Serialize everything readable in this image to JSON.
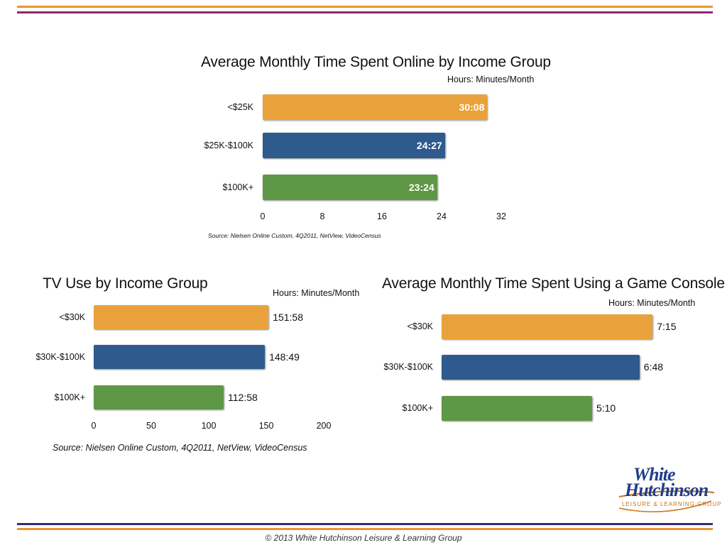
{
  "chart_data": [
    {
      "type": "bar",
      "orientation": "horizontal",
      "title": "Average Monthly Time Spent Online by Income Group",
      "units_label": "Hours: Minutes/Month",
      "categories": [
        "<$25K",
        "$25K-$100K",
        "$100K+"
      ],
      "values": [
        30.13,
        24.45,
        23.4
      ],
      "value_labels": [
        "30:08",
        "24:27",
        "23:24"
      ],
      "xlim": [
        0,
        32
      ],
      "ticks": [
        "0",
        "8",
        "16",
        "24",
        "32"
      ],
      "source": "Source: Nielsen Online Custom, 4Q2011, NetView, VideoCensus"
    },
    {
      "type": "bar",
      "orientation": "horizontal",
      "title": "TV Use by Income Group",
      "units_label": "Hours: Minutes/Month",
      "categories": [
        "<$30K",
        "$30K-$100K",
        "$100K+"
      ],
      "values": [
        151.97,
        148.82,
        112.97
      ],
      "value_labels": [
        "151:58",
        "148:49",
        "112:58"
      ],
      "xlim": [
        0,
        200
      ],
      "ticks": [
        "0",
        "50",
        "100",
        "150",
        "200"
      ],
      "source": "Source: Nielsen Online Custom, 4Q2011, NetView, VideoCensus"
    },
    {
      "type": "bar",
      "orientation": "horizontal",
      "title": "Average Monthly Time Spent Using a Game Console",
      "units_label": "Hours: Minutes/Month",
      "categories": [
        "<$30K",
        "$30K-$100K",
        "$100K+"
      ],
      "values": [
        7.25,
        6.8,
        5.17
      ],
      "value_labels": [
        "7:15",
        "6:48",
        "5:10"
      ],
      "xlim": [
        0,
        8
      ],
      "ticks": [],
      "source": ""
    }
  ],
  "colors": {
    "bar_1": "#e9a23b",
    "bar_2": "#2e5a8e",
    "bar_3": "#5e9745",
    "rule_orange": "#e8962e",
    "rule_purple": "#8c2a6a",
    "rule_navy": "#3a2a7a"
  },
  "logo": {
    "line1": "White",
    "line2": "Hutchinson",
    "tagline": "LEISURE & LEARNING GROUP"
  },
  "footer": "© 2013 White Hutchinson Leisure & Learning Group"
}
